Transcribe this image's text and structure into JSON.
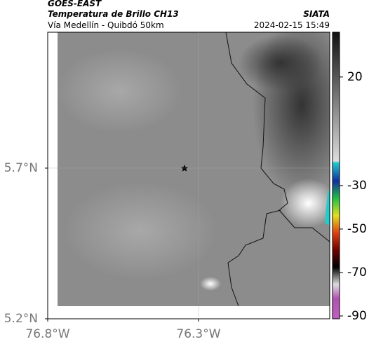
{
  "header": {
    "source": "GOES-EAST",
    "product": "Temperatura de Brillo CH13",
    "organization": "SIATA",
    "region": "Vía Medellín - Quibdó 50km",
    "timestamp": "2024-02-15 15:49"
  },
  "map": {
    "xlim": [
      -76.8,
      -75.865
    ],
    "ylim": [
      5.2,
      6.151
    ],
    "xticks": [
      {
        "value": -76.8,
        "label": "76.8°W"
      },
      {
        "value": -76.3,
        "label": "76.3°W"
      }
    ],
    "yticks": [
      {
        "value": 5.2,
        "label": "5.2°N"
      },
      {
        "value": 5.7,
        "label": "5.7°N"
      }
    ],
    "grid": true
  },
  "colorbar": {
    "lim": [
      -91.3,
      40.6
    ],
    "ticks": [
      20,
      -30,
      -50,
      -70,
      -90
    ]
  }
}
